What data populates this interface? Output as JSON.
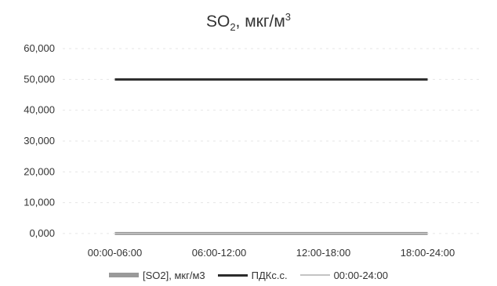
{
  "chart_data": {
    "type": "line",
    "title": {
      "base": "SO",
      "sub": "2",
      "mid": ", мкг/м",
      "sup": "3"
    },
    "categories": [
      "00:00-06:00",
      "06:00-12:00",
      "12:00-18:00",
      "18:00-24:00"
    ],
    "y_ticks": [
      "0,000",
      "10,000",
      "20,000",
      "30,000",
      "40,000",
      "50,000",
      "60,000"
    ],
    "ylim": [
      0,
      60
    ],
    "grid": true,
    "legend_position": "bottom",
    "series": [
      {
        "name": "[SO2], мкг/м3",
        "values": [
          0,
          0,
          0,
          0
        ],
        "color": "#9a9a9a",
        "style": "bar-line"
      },
      {
        "name": "ПДКс.с.",
        "values": [
          50,
          50,
          50,
          50
        ],
        "color": "#2b2b2b",
        "style": "line"
      },
      {
        "name": "00:00-24:00",
        "values": [
          0,
          0,
          0,
          0
        ],
        "color": "#c4c4c4",
        "style": "thin-line"
      }
    ]
  }
}
